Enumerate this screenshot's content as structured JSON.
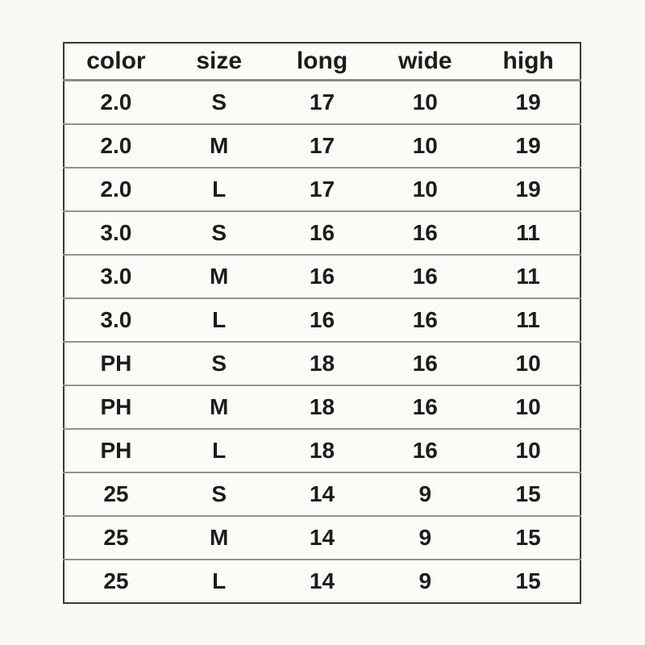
{
  "colors": {
    "page_background": "#fbf9f6",
    "table_background": "#fcfbf8",
    "outer_border": "#3a3835",
    "row_separator": "#95928d",
    "text": "#1e1c1a"
  },
  "chart_data": {
    "type": "table",
    "title": "",
    "columns": [
      "color",
      "size",
      "long",
      "wide",
      "high"
    ],
    "rows": [
      [
        "2.0",
        "S",
        "17",
        "10",
        "19"
      ],
      [
        "2.0",
        "M",
        "17",
        "10",
        "19"
      ],
      [
        "2.0",
        "L",
        "17",
        "10",
        "19"
      ],
      [
        "3.0",
        "S",
        "16",
        "16",
        "11"
      ],
      [
        "3.0",
        "M",
        "16",
        "16",
        "11"
      ],
      [
        "3.0",
        "L",
        "16",
        "16",
        "11"
      ],
      [
        "PH",
        "S",
        "18",
        "16",
        "10"
      ],
      [
        "PH",
        "M",
        "18",
        "16",
        "10"
      ],
      [
        "PH",
        "L",
        "18",
        "16",
        "10"
      ],
      [
        "25",
        "S",
        "14",
        "9",
        "15"
      ],
      [
        "25",
        "M",
        "14",
        "9",
        "15"
      ],
      [
        "25",
        "L",
        "14",
        "9",
        "15"
      ]
    ]
  }
}
